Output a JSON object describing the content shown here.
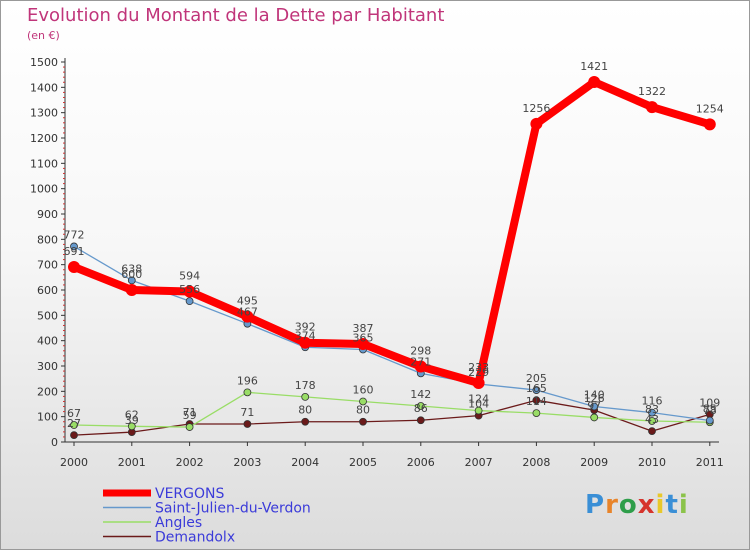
{
  "header": {
    "title": "Evolution du Montant de la Dette par Habitant",
    "subtitle": "(en €)"
  },
  "brand": {
    "letters": [
      "P",
      "r",
      "o",
      "x",
      "i",
      "t",
      "i"
    ],
    "colors": [
      "#3a8fd6",
      "#e8842a",
      "#2e9e4a",
      "#d6342c",
      "#e8c82a",
      "#3a8fd6",
      "#8bc34a"
    ]
  },
  "chart_data": {
    "type": "line",
    "title": "Evolution du Montant de la Dette par Habitant",
    "subtitle": "(en €)",
    "xlabel": "",
    "ylabel": "",
    "ylim": [
      0,
      1500
    ],
    "yticks": [
      0,
      100,
      200,
      300,
      400,
      500,
      600,
      700,
      800,
      900,
      1000,
      1100,
      1200,
      1300,
      1400,
      1500
    ],
    "categories": [
      "2000",
      "2001",
      "2002",
      "2003",
      "2004",
      "2005",
      "2006",
      "2007",
      "2008",
      "2009",
      "2010",
      "2011"
    ],
    "grid": false,
    "legend_position": "bottom-left",
    "series": [
      {
        "name": "VERGONS",
        "color": "#ff0000",
        "values": [
          691,
          600,
          594,
          495,
          392,
          387,
          298,
          233,
          1256,
          1421,
          1322,
          1254
        ]
      },
      {
        "name": "Saint-Julien-du-Verdon",
        "color": "#6699cc",
        "values": [
          772,
          638,
          556,
          467,
          374,
          365,
          271,
          229,
          205,
          140,
          116,
          85
        ]
      },
      {
        "name": "Angles",
        "color": "#99dd66",
        "values": [
          67,
          62,
          59,
          196,
          178,
          160,
          142,
          124,
          114,
          97,
          83,
          78
        ]
      },
      {
        "name": "Demandolx",
        "color": "#6b1a1a",
        "values": [
          27,
          39,
          71,
          71,
          80,
          80,
          86,
          104,
          165,
          126,
          43,
          109
        ]
      }
    ]
  }
}
